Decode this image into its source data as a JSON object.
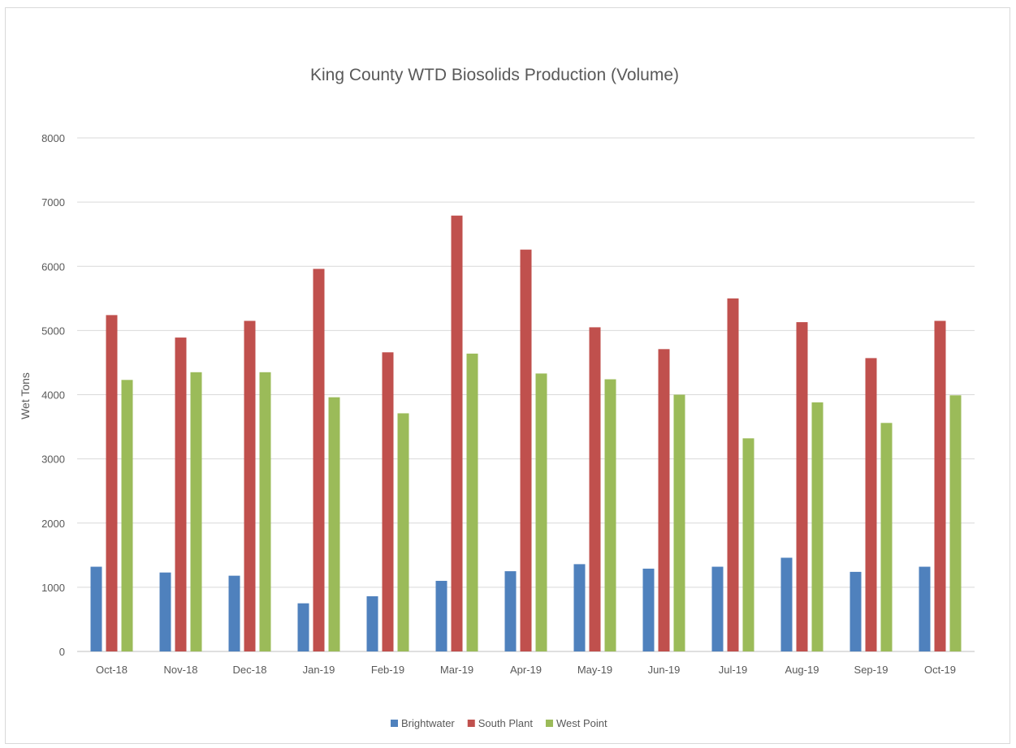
{
  "chart_data": {
    "type": "bar",
    "title": "King County WTD Biosolids Production (Volume)",
    "xlabel": "",
    "ylabel": "Wet Tons",
    "ylim": [
      0,
      8000
    ],
    "yticks": [
      0,
      1000,
      2000,
      3000,
      4000,
      5000,
      6000,
      7000,
      8000
    ],
    "grid": true,
    "legend_position": "bottom",
    "categories": [
      "Oct-18",
      "Nov-18",
      "Dec-18",
      "Jan-19",
      "Feb-19",
      "Mar-19",
      "Apr-19",
      "May-19",
      "Jun-19",
      "Jul-19",
      "Aug-19",
      "Sep-19",
      "Oct-19"
    ],
    "series": [
      {
        "name": "Brightwater",
        "color": "#4f81bd",
        "values": [
          1320,
          1230,
          1180,
          750,
          860,
          1100,
          1250,
          1360,
          1290,
          1320,
          1460,
          1240,
          1320
        ]
      },
      {
        "name": "South Plant",
        "color": "#c0504d",
        "values": [
          5240,
          4890,
          5150,
          5960,
          4660,
          6790,
          6260,
          5050,
          4710,
          5500,
          5130,
          4570,
          5150
        ]
      },
      {
        "name": "West Point",
        "color": "#9bbb59",
        "values": [
          4230,
          4350,
          4350,
          3960,
          3710,
          4640,
          4330,
          4240,
          4000,
          3320,
          3880,
          3560,
          3990
        ]
      }
    ]
  }
}
